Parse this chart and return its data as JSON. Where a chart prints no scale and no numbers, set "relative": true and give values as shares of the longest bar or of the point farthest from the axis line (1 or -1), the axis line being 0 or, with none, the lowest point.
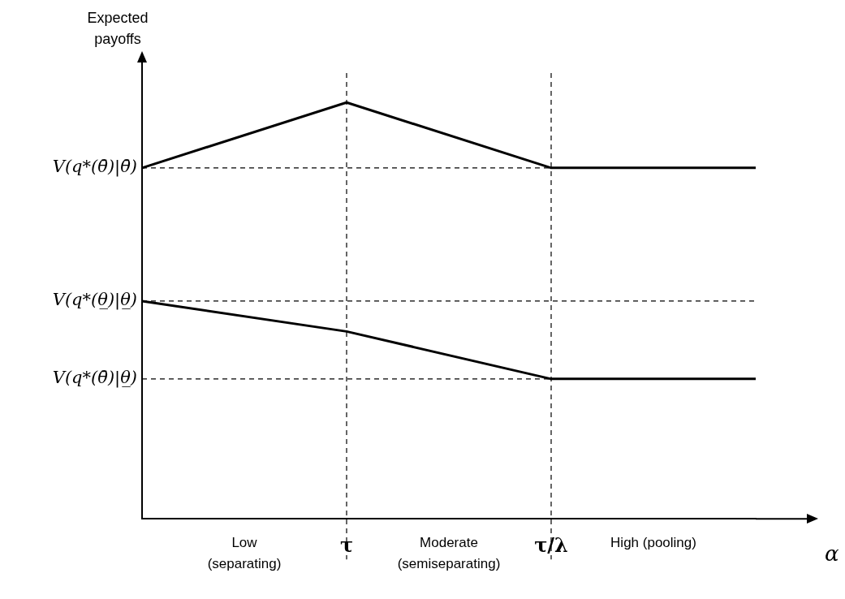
{
  "chart_data": {
    "type": "line",
    "xlabel": "α",
    "ylabel": "Expected payoffs",
    "relative": true,
    "categories": [
      null,
      "τ",
      "τ/λ",
      null
    ],
    "series": [
      {
        "color": "#000000",
        "values": [
          0.843,
          1,
          0.843,
          0.843
        ]
      },
      {
        "color": "#000000",
        "values": [
          0.523,
          0.45,
          0.336,
          0.336
        ]
      }
    ],
    "ref_lines": [
      {
        "axis": "y",
        "value": 0.843,
        "label": "V(q*(θ̄)|θ̄)",
        "color": "#000000",
        "line_style": "dashed"
      },
      {
        "axis": "y",
        "value": 0.523,
        "label": "V(q*(θ̲)|θ̲)",
        "color": "#000000",
        "line_style": "dashed"
      },
      {
        "axis": "y",
        "value": 0.336,
        "label": "V(q*(θ̄)|θ̲)",
        "color": "#000000",
        "line_style": "dashed"
      },
      {
        "axis": "x",
        "value": "τ",
        "color": "#000000",
        "line_style": "dashed"
      },
      {
        "axis": "x",
        "value": "τ/λ",
        "color": "#000000",
        "line_style": "dashed"
      }
    ],
    "annotations": [
      "Low (separating)",
      "Moderate (semiseparating)",
      "High (pooling)"
    ],
    "grid": false,
    "legend": false,
    "marker": "none",
    "line_style": "solid"
  }
}
